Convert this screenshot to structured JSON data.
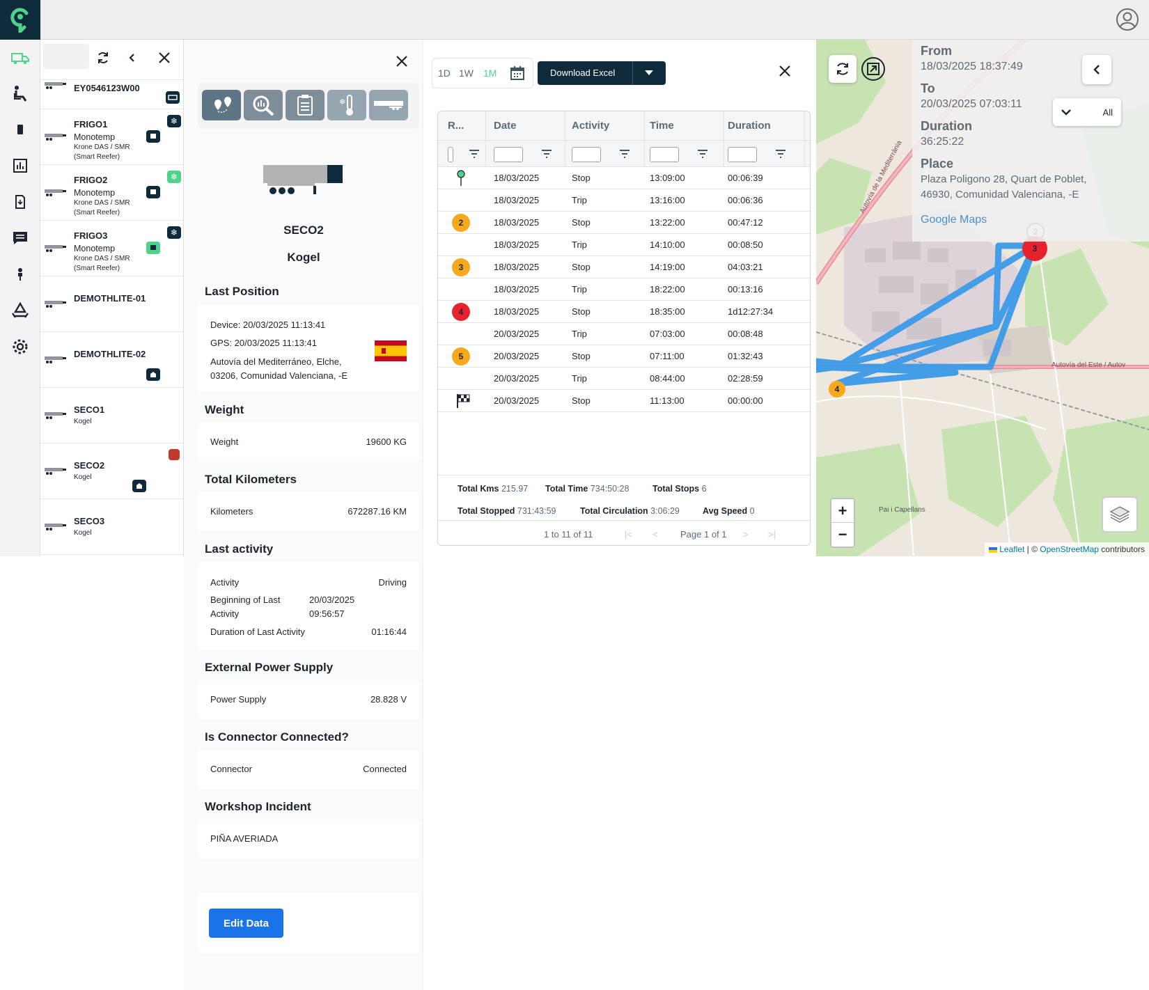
{
  "header": {
    "logo": "fleet-logo",
    "user_icon": "user-circle-icon"
  },
  "rail": {
    "items": [
      "truck-icon",
      "driver-seat-icon",
      "device-icon",
      "report-chart-icon",
      "document-icon",
      "message-icon",
      "person-icon",
      "recycle-icon",
      "gear-icon"
    ],
    "active_color": "#4fd38a"
  },
  "vehicle_list": {
    "items": [
      {
        "name": "EY0546123W00",
        "sub": "",
        "desc": ""
      },
      {
        "name": "FRIGO1",
        "sub": "Monotemp",
        "desc": "Krone DAS / SMR (Smart Reefer)"
      },
      {
        "name": "FRIGO2",
        "sub": "Monotemp",
        "desc": "Krone DAS / SMR (Smart Reefer)"
      },
      {
        "name": "FRIGO3",
        "sub": "Monotemp",
        "desc": "Krone DAS / SMR (Smart Reefer)"
      },
      {
        "name": "DEMOTHLITE-01",
        "sub": "",
        "desc": ""
      },
      {
        "name": "DEMOTHLITE-02",
        "sub": "",
        "desc": ""
      },
      {
        "name": "SECO1",
        "sub": "Kogel",
        "desc": ""
      },
      {
        "name": "SECO2",
        "sub": "Kogel",
        "desc": ""
      },
      {
        "name": "SECO3",
        "sub": "Kogel",
        "desc": ""
      }
    ]
  },
  "detail": {
    "vehicle_name": "SECO2",
    "brand": "Kogel",
    "last_position": {
      "title": "Last Position",
      "device": "Device: 20/03/2025 11:13:41",
      "gps": "GPS: 20/03/2025 11:13:41",
      "address_line1": "Autovía del Mediterráneo, Elche,",
      "address_line2": "03206, Comunidad Valenciana, -E"
    },
    "weight": {
      "title": "Weight",
      "label": "Weight",
      "value": "19600 KG"
    },
    "kilometers": {
      "title": "Total Kilometers",
      "label": "Kilometers",
      "value": "672287.16 KM"
    },
    "last_activity": {
      "title": "Last activity",
      "activity_label": "Activity",
      "activity_value": "Driving",
      "begin_label1": "Beginning of Last",
      "begin_label2": "Activity",
      "begin_date": "20/03/2025",
      "begin_time": "09:56:57",
      "duration_label": "Duration of Last Activity",
      "duration_value": "01:16:44"
    },
    "power": {
      "title": "External Power Supply",
      "label": "Power Supply",
      "value": "28.828 V"
    },
    "connector": {
      "title": "Is Connector Connected?",
      "label": "Connector",
      "value": "Connected"
    },
    "workshop": {
      "title": "Workshop Incident",
      "value": "PIÑA AVERIADA"
    },
    "edit_label": "Edit Data"
  },
  "history": {
    "periods": [
      "1D",
      "1W",
      "1M"
    ],
    "active_period": "1M",
    "download_label": "Download Excel",
    "columns": [
      "R...",
      "Date",
      "Activity",
      "Time",
      "Duration"
    ],
    "rows": [
      {
        "marker": "start",
        "date": "18/03/2025",
        "activity": "Stop",
        "time": "13:09:00",
        "duration": "00:06:39"
      },
      {
        "marker": "",
        "date": "18/03/2025",
        "activity": "Trip",
        "time": "13:16:00",
        "duration": "00:06:36"
      },
      {
        "marker": "2",
        "date": "18/03/2025",
        "activity": "Stop",
        "time": "13:22:00",
        "duration": "00:47:12"
      },
      {
        "marker": "",
        "date": "18/03/2025",
        "activity": "Trip",
        "time": "14:10:00",
        "duration": "00:08:50"
      },
      {
        "marker": "3",
        "date": "18/03/2025",
        "activity": "Stop",
        "time": "14:19:00",
        "duration": "04:03:21"
      },
      {
        "marker": "",
        "date": "18/03/2025",
        "activity": "Trip",
        "time": "18:22:00",
        "duration": "00:13:16"
      },
      {
        "marker": "4",
        "date": "18/03/2025",
        "activity": "Stop",
        "time": "18:35:00",
        "duration": "1d12:27:34"
      },
      {
        "marker": "",
        "date": "20/03/2025",
        "activity": "Trip",
        "time": "07:03:00",
        "duration": "00:08:48"
      },
      {
        "marker": "5",
        "date": "20/03/2025",
        "activity": "Stop",
        "time": "07:11:00",
        "duration": "01:32:43"
      },
      {
        "marker": "",
        "date": "20/03/2025",
        "activity": "Trip",
        "time": "08:44:00",
        "duration": "02:28:59"
      },
      {
        "marker": "finish",
        "date": "20/03/2025",
        "activity": "Stop",
        "time": "11:13:00",
        "duration": "00:00:00"
      }
    ],
    "totals": {
      "kms_label": "Total Kms",
      "kms": "215.97",
      "time_label": "Total Time",
      "time": "734:50:28",
      "stops_label": "Total Stops",
      "stops": "6",
      "stopped_label": "Total Stopped",
      "stopped": "731:43:59",
      "circ_label": "Total Circulation",
      "circ": "3:06:29",
      "speed_label": "Avg Speed",
      "speed": "0"
    },
    "pager": {
      "range": "1 to 11 of 11",
      "page": "Page 1 of 1"
    }
  },
  "map": {
    "from_label": "From",
    "from": "18/03/2025 18:37:49",
    "to_label": "To",
    "to": "20/03/2025 07:03:11",
    "duration_label": "Duration",
    "duration": "36:25:22",
    "place_label": "Place",
    "place_line1": "Plaza Poligono 28, Quart de Poblet,",
    "place_line2": "46930, Comunidad Valenciana, -E",
    "google_link": "Google Maps",
    "filter_label": "All",
    "zoom_in": "+",
    "zoom_out": "−",
    "attrib_leaflet": "Leaflet",
    "attrib_sep": " | © ",
    "attrib_osm": "OpenStreetMap",
    "attrib_tail": " contributors",
    "road_a7": "Autovía de la Mediterrània",
    "road_east": "Autovía del Este / Autov",
    "place_name": "Pai i Capellans",
    "marker_2": "2",
    "marker_3": "3",
    "marker_4": "4",
    "route_color": "#3b9be8"
  }
}
